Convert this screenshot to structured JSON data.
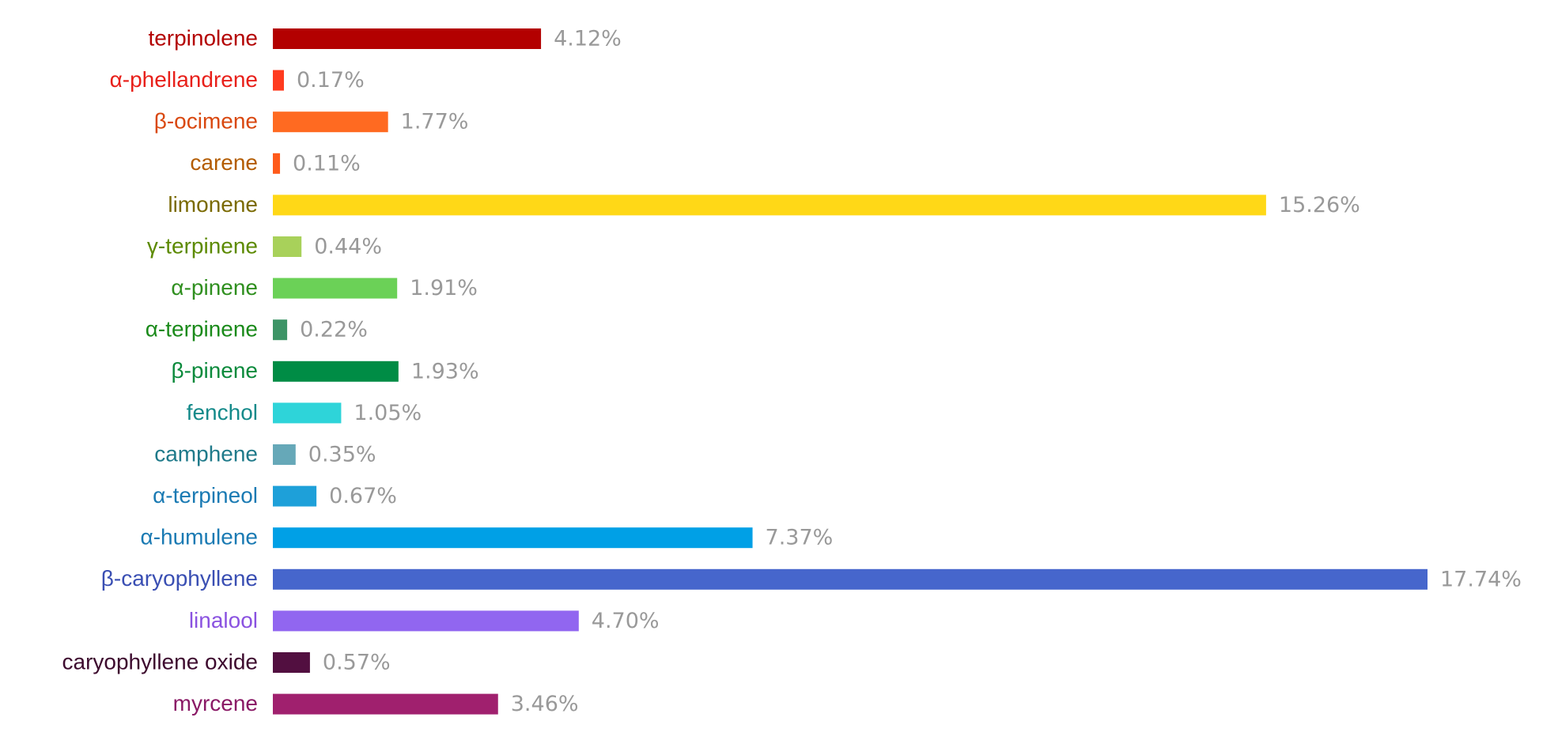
{
  "chart_data": {
    "type": "bar",
    "orientation": "horizontal",
    "categories": [
      "terpinolene",
      "α-phellandrene",
      "β-ocimene",
      "carene",
      "limonene",
      "γ-terpinene",
      "α-pinene",
      "α-terpinene",
      "β-pinene",
      "fenchol",
      "camphene",
      "α-terpineol",
      "α-humulene",
      "β-caryophyllene",
      "linalool",
      "caryophyllene oxide",
      "myrcene"
    ],
    "values": [
      4.12,
      0.17,
      1.77,
      0.11,
      15.26,
      0.44,
      1.91,
      0.22,
      1.93,
      1.05,
      0.35,
      0.67,
      7.37,
      17.74,
      4.7,
      0.57,
      3.46
    ],
    "value_labels": [
      "4.12%",
      "0.17%",
      "1.77%",
      "0.11%",
      "15.26%",
      "0.44%",
      "1.91%",
      "0.22%",
      "1.93%",
      "1.05%",
      "0.35%",
      "0.67%",
      "7.37%",
      "17.74%",
      "4.70%",
      "0.57%",
      "3.46%"
    ],
    "colors": [
      "#b30000",
      "#ff3b1f",
      "#ff6a21",
      "#ff5a1a",
      "#ffd817",
      "#a8d15a",
      "#6bd157",
      "#3d9466",
      "#008c45",
      "#2ed4d9",
      "#66a8b8",
      "#1ea0d9",
      "#00a0e6",
      "#4666cc",
      "#9166f0",
      "#520f40",
      "#a0206e"
    ],
    "label_colors": [
      "#b30000",
      "#e8201a",
      "#d9480f",
      "#b35c00",
      "#7a6a00",
      "#5c8a00",
      "#2f8f1f",
      "#1a8a1a",
      "#0b8a3c",
      "#148a8a",
      "#1f7a8a",
      "#1a7ab3",
      "#1a7ab3",
      "#3a4fb3",
      "#8a52e0",
      "#3d0a2e",
      "#8a1a66"
    ]
  }
}
